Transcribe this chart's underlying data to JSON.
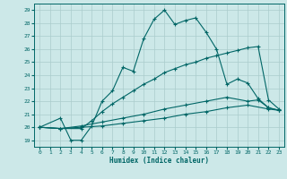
{
  "xlabel": "Humidex (Indice chaleur)",
  "ylabel": "",
  "background_color": "#cce8e8",
  "grid_color": "#aacccc",
  "line_color": "#006666",
  "xlim": [
    -0.5,
    23.5
  ],
  "ylim": [
    18.5,
    29.5
  ],
  "xticks": [
    0,
    1,
    2,
    3,
    4,
    5,
    6,
    7,
    8,
    9,
    10,
    11,
    12,
    13,
    14,
    15,
    16,
    17,
    18,
    19,
    20,
    21,
    22,
    23
  ],
  "yticks": [
    19,
    20,
    21,
    22,
    23,
    24,
    25,
    26,
    27,
    28,
    29
  ],
  "curve1_x": [
    0,
    2,
    3,
    4,
    5,
    6,
    7,
    8,
    9,
    10,
    11,
    12,
    13,
    14,
    15,
    16,
    17,
    18,
    19,
    20,
    21,
    22,
    23
  ],
  "curve1_y": [
    20.0,
    20.7,
    19.0,
    19.0,
    20.1,
    22.0,
    22.8,
    24.6,
    24.3,
    26.8,
    28.3,
    29.0,
    27.9,
    28.2,
    28.4,
    27.3,
    26.0,
    23.3,
    23.7,
    23.4,
    22.2,
    21.5,
    21.3
  ],
  "curve2_x": [
    0,
    2,
    4,
    5,
    6,
    7,
    8,
    9,
    10,
    11,
    12,
    13,
    14,
    15,
    16,
    17,
    18,
    19,
    20,
    21,
    22,
    23
  ],
  "curve2_y": [
    20.0,
    19.9,
    19.9,
    20.5,
    21.2,
    21.8,
    22.3,
    22.8,
    23.3,
    23.7,
    24.2,
    24.5,
    24.8,
    25.0,
    25.3,
    25.5,
    25.7,
    25.9,
    26.1,
    26.2,
    22.1,
    21.4
  ],
  "curve3_x": [
    0,
    2,
    4,
    6,
    8,
    10,
    12,
    14,
    16,
    18,
    20,
    21,
    22,
    23
  ],
  "curve3_y": [
    20.0,
    19.9,
    20.1,
    20.4,
    20.7,
    21.0,
    21.4,
    21.7,
    22.0,
    22.3,
    22.0,
    22.1,
    21.5,
    21.3
  ],
  "curve4_x": [
    0,
    2,
    4,
    6,
    8,
    10,
    12,
    14,
    16,
    18,
    20,
    22,
    23
  ],
  "curve4_y": [
    20.0,
    19.9,
    20.0,
    20.1,
    20.3,
    20.5,
    20.7,
    21.0,
    21.2,
    21.5,
    21.7,
    21.4,
    21.3
  ]
}
